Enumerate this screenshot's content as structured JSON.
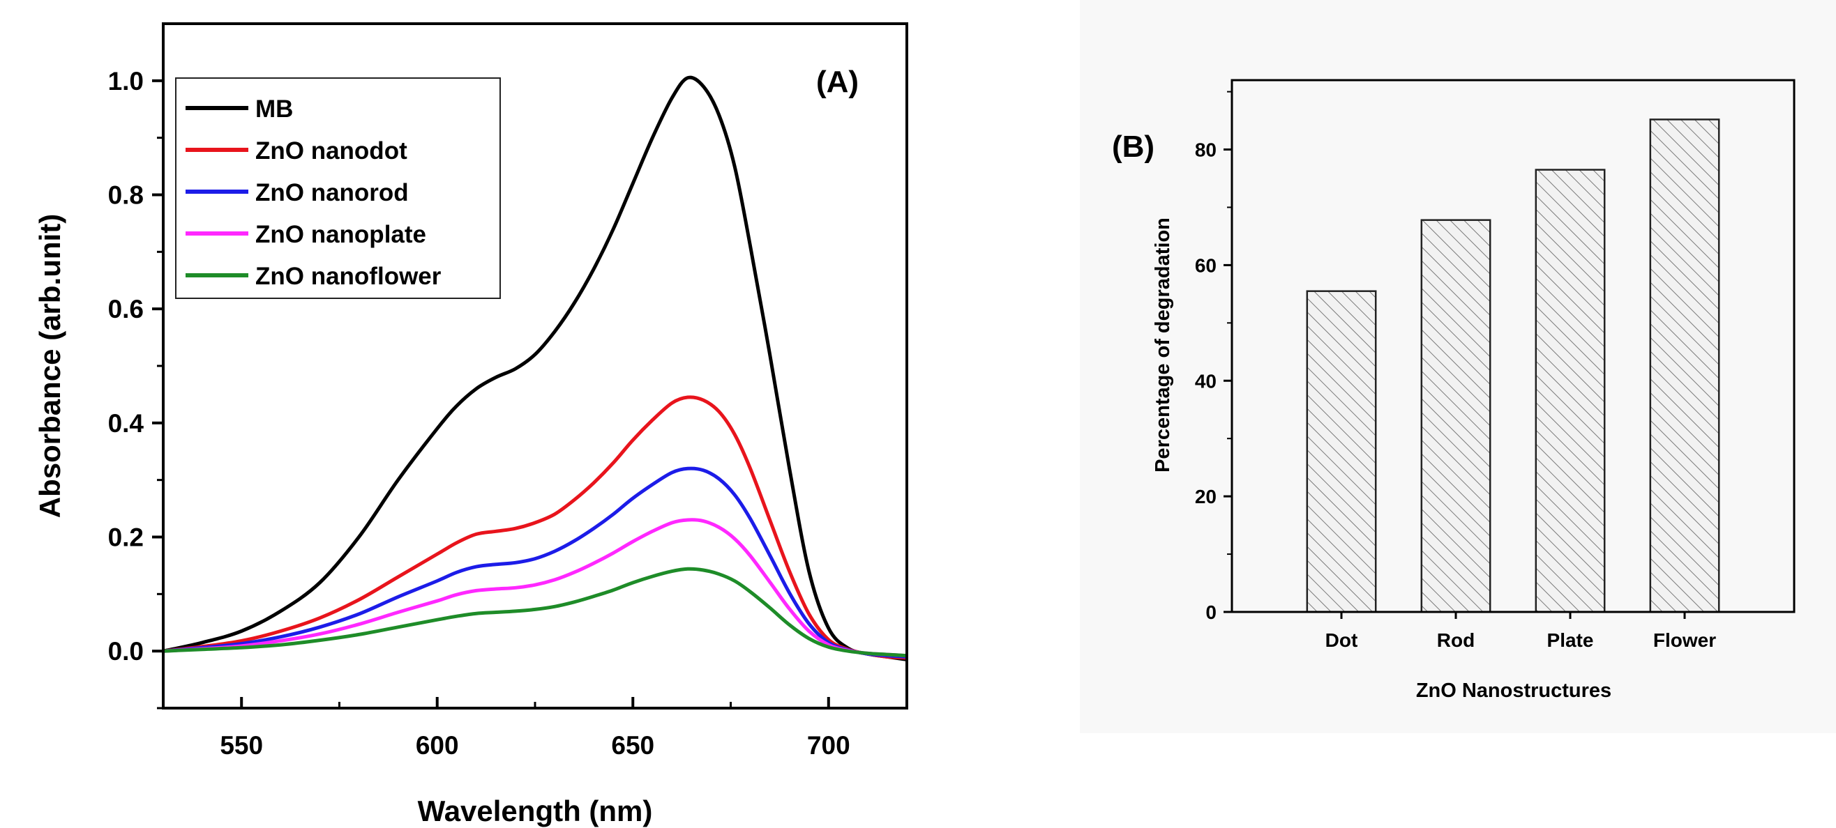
{
  "chart_data": [
    {
      "type": "line",
      "panel_label": "(A)",
      "xlabel": "Wavelength (nm)",
      "ylabel": "Absorbance (arb.unit)",
      "xlim": [
        530,
        720
      ],
      "ylim": [
        -0.1,
        1.1
      ],
      "x_ticks": [
        550,
        600,
        650,
        700
      ],
      "x_tick_labels": [
        "550",
        "600",
        "650",
        "700"
      ],
      "y_ticks": [
        0.0,
        0.2,
        0.4,
        0.6,
        0.8,
        1.0
      ],
      "y_tick_labels": [
        "0.0",
        "0.2",
        "0.4",
        "0.6",
        "0.8",
        "1.0"
      ],
      "legend_position": "top-left",
      "x": [
        530,
        540,
        550,
        560,
        570,
        580,
        590,
        600,
        605,
        610,
        615,
        620,
        625,
        630,
        635,
        640,
        645,
        650,
        655,
        660,
        664,
        668,
        672,
        676,
        680,
        685,
        690,
        695,
        700,
        705,
        710,
        715,
        720
      ],
      "series": [
        {
          "name": "MB",
          "color": "#000000",
          "values": [
            0.0,
            0.015,
            0.035,
            0.07,
            0.12,
            0.2,
            0.3,
            0.39,
            0.43,
            0.46,
            0.48,
            0.495,
            0.52,
            0.56,
            0.61,
            0.67,
            0.74,
            0.82,
            0.9,
            0.97,
            1.005,
            0.99,
            0.94,
            0.85,
            0.71,
            0.52,
            0.32,
            0.14,
            0.04,
            0.005,
            -0.005,
            -0.01,
            -0.015
          ]
        },
        {
          "name": "ZnO nanodot",
          "color": "#e8141c",
          "values": [
            0.0,
            0.008,
            0.018,
            0.035,
            0.058,
            0.09,
            0.13,
            0.17,
            0.19,
            0.205,
            0.21,
            0.215,
            0.225,
            0.24,
            0.265,
            0.295,
            0.33,
            0.37,
            0.405,
            0.435,
            0.445,
            0.44,
            0.42,
            0.38,
            0.32,
            0.23,
            0.14,
            0.065,
            0.02,
            0.003,
            -0.005,
            -0.01,
            -0.012
          ]
        },
        {
          "name": "ZnO nanorod",
          "color": "#1c1ce8",
          "values": [
            0.0,
            0.006,
            0.013,
            0.025,
            0.042,
            0.065,
            0.095,
            0.123,
            0.138,
            0.148,
            0.152,
            0.155,
            0.162,
            0.175,
            0.193,
            0.215,
            0.24,
            0.268,
            0.292,
            0.313,
            0.32,
            0.317,
            0.302,
            0.274,
            0.232,
            0.168,
            0.102,
            0.048,
            0.015,
            0.002,
            -0.005,
            -0.008,
            -0.01
          ]
        },
        {
          "name": "ZnO nanoplate",
          "color": "#ff28ff",
          "values": [
            0.0,
            0.004,
            0.009,
            0.018,
            0.03,
            0.047,
            0.068,
            0.088,
            0.099,
            0.106,
            0.109,
            0.111,
            0.116,
            0.125,
            0.138,
            0.154,
            0.172,
            0.192,
            0.21,
            0.225,
            0.23,
            0.228,
            0.217,
            0.197,
            0.167,
            0.121,
            0.074,
            0.035,
            0.011,
            0.001,
            -0.004,
            -0.006,
            -0.008
          ]
        },
        {
          "name": "ZnO nanoflower",
          "color": "#1e8c28",
          "values": [
            0.0,
            0.003,
            0.006,
            0.011,
            0.019,
            0.029,
            0.042,
            0.055,
            0.061,
            0.066,
            0.068,
            0.07,
            0.073,
            0.078,
            0.086,
            0.096,
            0.107,
            0.12,
            0.131,
            0.14,
            0.144,
            0.142,
            0.135,
            0.123,
            0.104,
            0.076,
            0.046,
            0.022,
            0.007,
            0.0,
            -0.004,
            -0.006,
            -0.008
          ]
        }
      ]
    },
    {
      "type": "bar",
      "panel_label": "(B)",
      "xlabel": "ZnO Nanostructures",
      "ylabel": "Percentage of degradation",
      "categories": [
        "Dot",
        "Rod",
        "Plate",
        "Flower"
      ],
      "values": [
        55.5,
        67.8,
        76.5,
        85.2
      ],
      "ylim": [
        0,
        92
      ],
      "y_ticks": [
        0,
        20,
        40,
        60,
        80
      ],
      "y_tick_labels": [
        "0",
        "20",
        "40",
        "60",
        "80"
      ],
      "bar_fill": "diagonal-hatch",
      "colors": {
        "bar_stroke": "#222222",
        "hatch": "#777777",
        "bar_bg": "#f2f2f2"
      }
    }
  ]
}
